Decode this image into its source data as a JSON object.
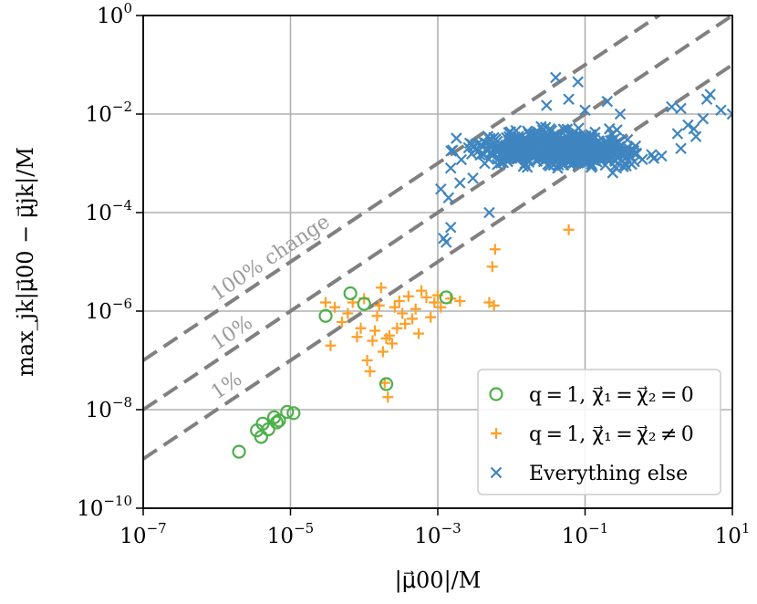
{
  "chart_data": {
    "type": "scatter",
    "title": "",
    "xlabel": "|μ⃗00|/M",
    "ylabel": "max_jk|μ⃗00 − μ⃗jk|/M",
    "xscale": "log",
    "yscale": "log",
    "xlim": [
      1e-07,
      10
    ],
    "ylim": [
      1e-10,
      1
    ],
    "grid": true,
    "x_ticks": [
      {
        "base": "10",
        "exp": "−7",
        "value": 1e-07
      },
      {
        "base": "10",
        "exp": "−5",
        "value": 1e-05
      },
      {
        "base": "10",
        "exp": "−3",
        "value": 0.001
      },
      {
        "base": "10",
        "exp": "−1",
        "value": 0.1
      },
      {
        "base": "10",
        "exp": "1",
        "value": 10
      }
    ],
    "y_ticks": [
      {
        "base": "10",
        "exp": "−10",
        "value": 1e-10
      },
      {
        "base": "10",
        "exp": "−8",
        "value": 1e-08
      },
      {
        "base": "10",
        "exp": "−6",
        "value": 1e-06
      },
      {
        "base": "10",
        "exp": "−4",
        "value": 0.0001
      },
      {
        "base": "10",
        "exp": "−2",
        "value": 0.01
      },
      {
        "base": "10",
        "exp": "0",
        "value": 1
      }
    ],
    "reference_lines": [
      {
        "label": "100% change",
        "slope_factor": 1.0
      },
      {
        "label": "10%",
        "slope_factor": 0.1
      },
      {
        "label": "1%",
        "slope_factor": 0.01
      }
    ],
    "legend_position": "bottom-right",
    "series": [
      {
        "name": "q = 1, χ⃗1 = χ⃗2 = 0",
        "legend_prefix": "q = 1, ",
        "legend_math": "χ⃗₁ = χ⃗₂ = 0",
        "marker": "circle",
        "color": "#4daf4a",
        "points": [
          [
            2e-06,
            1.4e-09
          ],
          [
            3.5e-06,
            3.8e-09
          ],
          [
            4e-06,
            2.8e-09
          ],
          [
            4.2e-06,
            5.2e-09
          ],
          [
            5e-06,
            4e-09
          ],
          [
            6e-06,
            7e-09
          ],
          [
            6.5e-06,
            5.5e-09
          ],
          [
            7e-06,
            6e-09
          ],
          [
            9e-06,
            9e-09
          ],
          [
            1.1e-05,
            8.5e-09
          ],
          [
            3e-05,
            8e-07
          ],
          [
            6.5e-05,
            2.3e-06
          ],
          [
            0.0001,
            1.4e-06
          ],
          [
            0.0002,
            3.3e-08
          ],
          [
            0.0013,
            1.9e-06
          ]
        ]
      },
      {
        "name": "q = 1, χ⃗1 = χ⃗2 ≠ 0",
        "legend_prefix": "q = 1, ",
        "legend_math": "χ⃗₁ = χ⃗₂ ≠ 0",
        "marker": "plus",
        "color": "#ff9f27",
        "points": [
          [
            3e-05,
            1.5e-06
          ],
          [
            3.5e-05,
            2e-07
          ],
          [
            4e-05,
            1.2e-06
          ],
          [
            5e-05,
            6e-07
          ],
          [
            6e-05,
            9e-07
          ],
          [
            7e-05,
            1.5e-06
          ],
          [
            8e-05,
            3e-07
          ],
          [
            9e-05,
            4.5e-07
          ],
          [
            0.0001,
            1.8e-06
          ],
          [
            0.00011,
            1e-07
          ],
          [
            0.00012,
            6e-08
          ],
          [
            0.00013,
            2.5e-07
          ],
          [
            0.00014,
            4e-07
          ],
          [
            0.00015,
            8e-07
          ],
          [
            0.00016,
            1.3e-06
          ],
          [
            0.00017,
            3e-06
          ],
          [
            0.00018,
            1.5e-07
          ],
          [
            0.00019,
            3.5e-08
          ],
          [
            0.0002,
            2.8e-07
          ],
          [
            0.00021,
            1.8e-08
          ],
          [
            0.00022,
            3.2e-07
          ],
          [
            0.00024,
            2.2e-07
          ],
          [
            0.00026,
            1.2e-06
          ],
          [
            0.00028,
            4.5e-07
          ],
          [
            0.0003,
            1.6e-06
          ],
          [
            0.00033,
            9e-07
          ],
          [
            0.00036,
            5.5e-07
          ],
          [
            0.0004,
            2e-06
          ],
          [
            0.00045,
            7e-07
          ],
          [
            0.0005,
            1.1e-06
          ],
          [
            0.00055,
            3.5e-07
          ],
          [
            0.0006,
            2.6e-06
          ],
          [
            0.0007,
            1.9e-06
          ],
          [
            0.0008,
            7.5e-07
          ],
          [
            0.0009,
            1.5e-06
          ],
          [
            0.001,
            2.1e-06
          ],
          [
            0.0011,
            1.2e-06
          ],
          [
            0.0015,
            1.8e-06
          ],
          [
            0.002,
            1.6e-06
          ],
          [
            0.005,
            1.5e-06
          ],
          [
            0.0055,
            8e-06
          ],
          [
            0.006,
            1.8e-05
          ],
          [
            0.0058,
            1.3e-06
          ],
          [
            0.06,
            4.5e-05
          ]
        ]
      },
      {
        "name": "Everything else",
        "legend_prefix": "Everything else",
        "legend_math": "",
        "marker": "x",
        "color": "#3f85c0",
        "cluster": {
          "xlog_range": [
            -3.1,
            0.3
          ],
          "ylog_range": [
            -3.3,
            -2.1
          ],
          "count": 650
        },
        "points": [
          [
            0.0012,
            3e-05
          ],
          [
            0.0013,
            2.5e-05
          ],
          [
            0.0015,
            5e-05
          ],
          [
            0.0014,
            0.0002
          ],
          [
            0.0011,
            0.0003
          ],
          [
            0.0015,
            0.0008
          ],
          [
            0.002,
            0.0004
          ],
          [
            0.003,
            0.0005
          ],
          [
            0.005,
            0.0001
          ],
          [
            0.03,
            0.015
          ],
          [
            0.04,
            0.055
          ],
          [
            0.06,
            0.02
          ],
          [
            0.08,
            0.045
          ],
          [
            0.1,
            0.012
          ],
          [
            0.2,
            0.018
          ],
          [
            0.3,
            0.01
          ],
          [
            0.5,
            0.0016
          ],
          [
            0.6,
            0.0012
          ],
          [
            0.8,
            0.0015
          ],
          [
            1.5,
            0.014
          ],
          [
            2,
            0.013
          ],
          [
            3,
            0.005
          ],
          [
            3.2,
            0.0035
          ],
          [
            4,
            0.008
          ],
          [
            4.5,
            0.02
          ],
          [
            5,
            0.025
          ],
          [
            7,
            0.012
          ],
          [
            10,
            0.01
          ],
          [
            2,
            0.002
          ],
          [
            1.8,
            0.004
          ],
          [
            2.5,
            0.006
          ]
        ]
      }
    ]
  }
}
